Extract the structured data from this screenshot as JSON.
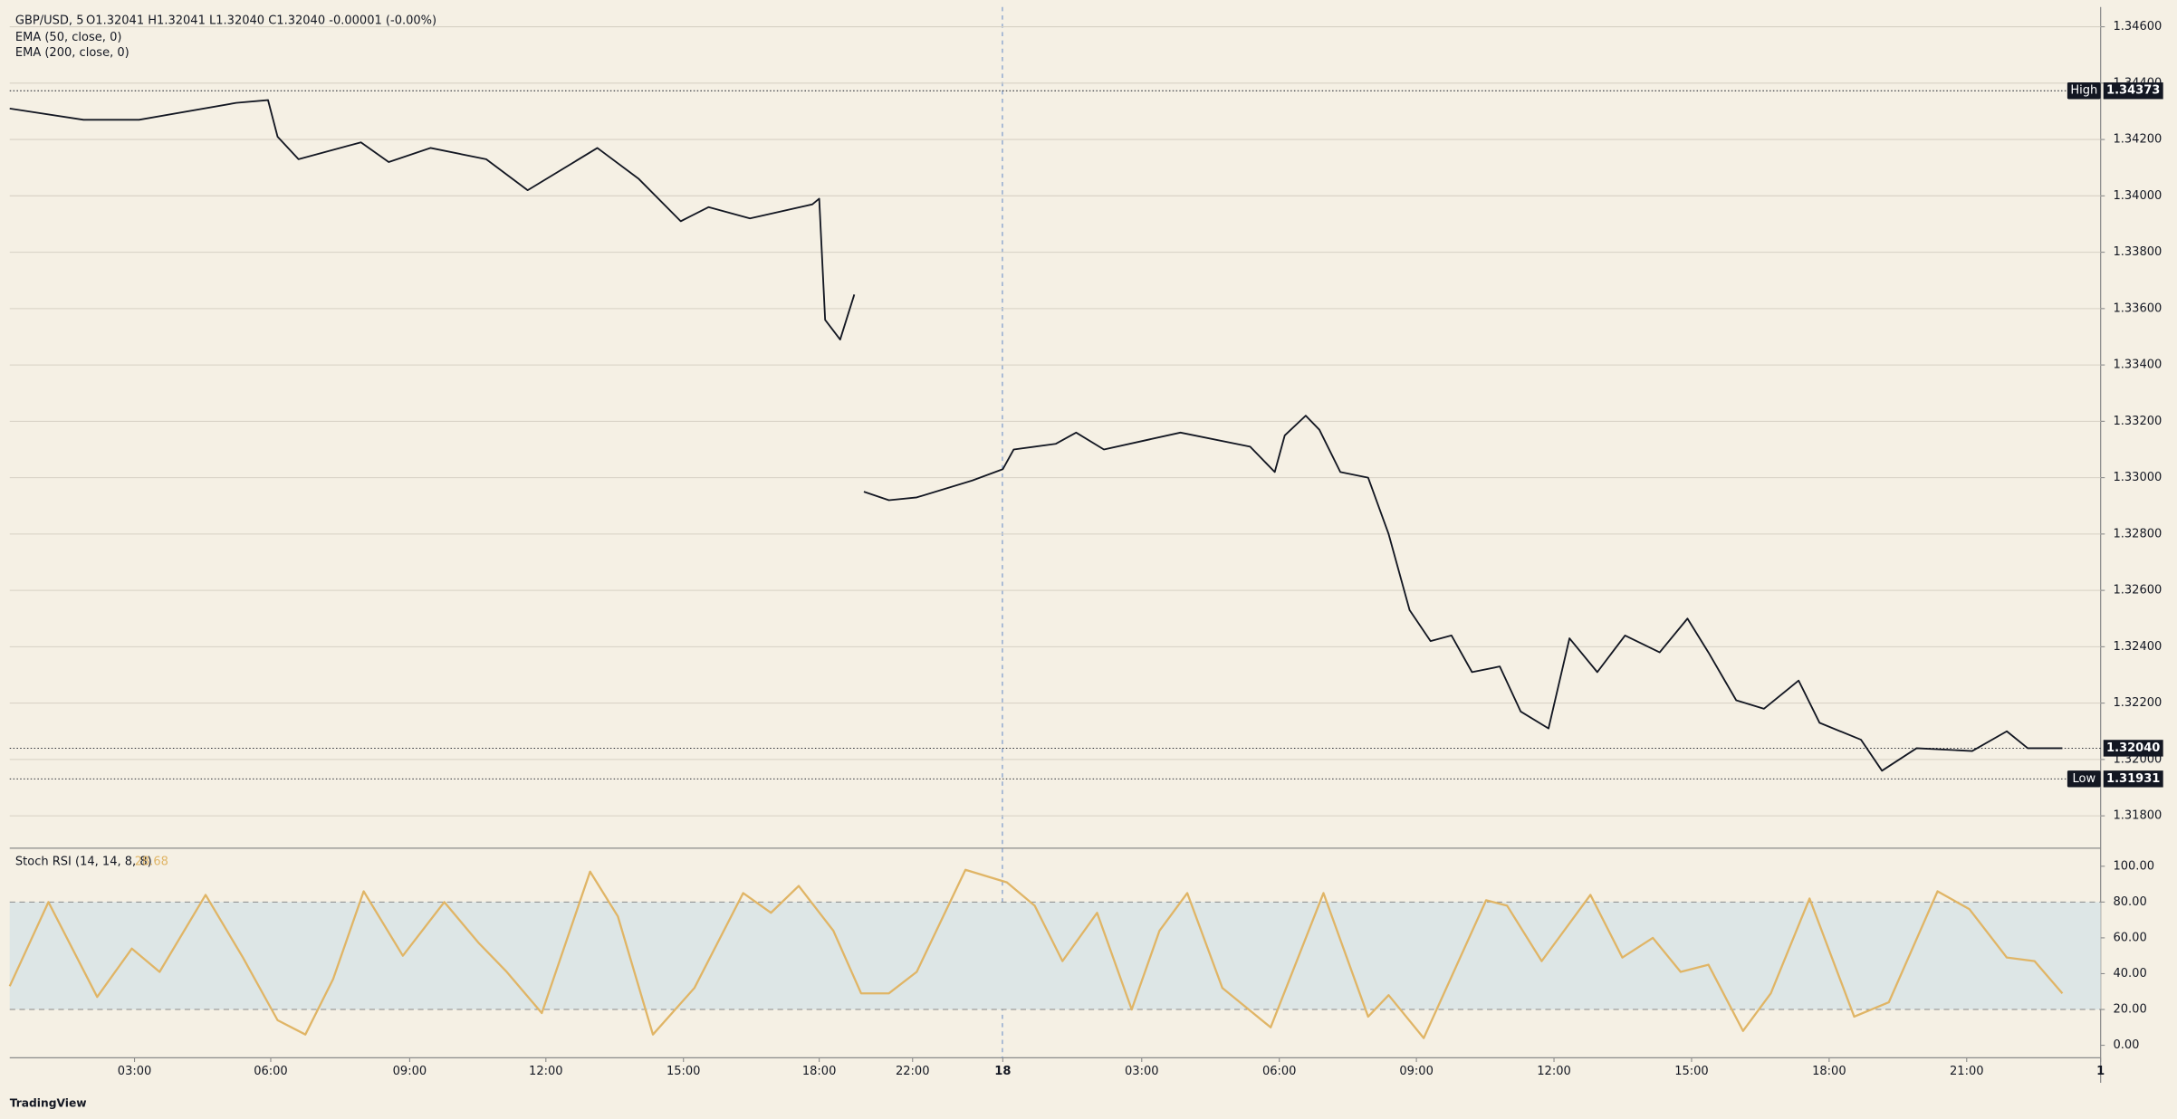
{
  "chart_data": [
    {
      "type": "line",
      "title": "GBP/USD, 5",
      "ohlc_label": "O1.32041  H1.32041  L1.32040  C1.32040  -0.00001 (-0.00%)",
      "indicators": [
        "EMA (50, close, 0)",
        "EMA (200, close, 0)"
      ],
      "color": "#131722",
      "x": [
        0,
        1.62,
        2.84,
        4.97,
        5.67,
        5.88,
        6.34,
        7.71,
        8.32,
        9.24,
        10.46,
        11.37,
        12.9,
        13.81,
        14.73,
        15.34,
        16.25,
        17.62,
        17.77,
        17.9,
        18.23,
        18.54,
        18.6,
        18.75,
        19.3,
        19.91,
        21.13,
        21.8,
        22.04,
        22.96,
        23.41,
        24.02,
        25.7,
        27.23,
        27.77,
        27.99,
        28.45,
        28.75,
        29.21,
        29.82,
        30.27,
        30.73,
        31.19,
        31.65,
        32.1,
        32.71,
        33.17,
        33.78,
        34.24,
        34.85,
        35.46,
        36.22,
        36.83,
        37.29,
        37.9,
        38.51,
        39.27,
        39.73,
        40.64,
        41.1,
        41.86,
        43.08,
        43.84,
        44.3,
        45.06
      ],
      "values": [
        1.3431,
        1.3427,
        1.3427,
        1.3433,
        1.3434,
        1.3421,
        1.3413,
        1.3419,
        1.3412,
        1.3417,
        1.3413,
        1.3402,
        1.3417,
        1.3406,
        1.3391,
        1.3396,
        1.3392,
        1.3397,
        1.3399,
        1.3356,
        1.3349,
        1.3365,
        null,
        1.3295,
        1.3292,
        1.3293,
        1.3299,
        1.3303,
        1.331,
        1.3312,
        1.3316,
        1.331,
        1.3316,
        1.3311,
        1.3302,
        1.3315,
        1.3322,
        1.3317,
        1.3302,
        1.33,
        1.328,
        1.3253,
        1.3242,
        1.3244,
        1.3231,
        1.3233,
        1.3217,
        1.3211,
        1.3243,
        1.3231,
        1.3244,
        1.3238,
        1.325,
        1.3238,
        1.3221,
        1.3218,
        1.3228,
        1.3213,
        1.3207,
        1.3196,
        1.3204,
        1.3203,
        1.321,
        1.3204,
        1.3204
      ],
      "xlim": [
        0,
        45.9
      ],
      "xticks": [
        {
          "value": 2.74,
          "label": "03:00"
        },
        {
          "value": 5.73,
          "label": "06:00"
        },
        {
          "value": 8.78,
          "label": "09:00"
        },
        {
          "value": 11.77,
          "label": "12:00"
        },
        {
          "value": 14.79,
          "label": "15:00"
        },
        {
          "value": 17.77,
          "label": "18:00"
        },
        {
          "value": 19.82,
          "label": "22:00"
        },
        {
          "value": 21.8,
          "label": "18"
        },
        {
          "value": 24.85,
          "label": "03:00"
        },
        {
          "value": 27.87,
          "label": "06:00"
        },
        {
          "value": 30.88,
          "label": "09:00"
        },
        {
          "value": 33.9,
          "label": "12:00"
        },
        {
          "value": 36.92,
          "label": "15:00"
        },
        {
          "value": 39.94,
          "label": "18:00"
        },
        {
          "value": 42.96,
          "label": "21:00"
        },
        {
          "value": 45.9,
          "label": "1"
        }
      ],
      "ylim": [
        1.3169,
        1.3467
      ],
      "yticks": [
        {
          "value": 1.318,
          "label": "1.31800"
        },
        {
          "value": 1.32,
          "label": "1.32000"
        },
        {
          "value": 1.322,
          "label": "1.32200"
        },
        {
          "value": 1.324,
          "label": "1.32400"
        },
        {
          "value": 1.326,
          "label": "1.32600"
        },
        {
          "value": 1.328,
          "label": "1.32800"
        },
        {
          "value": 1.33,
          "label": "1.33000"
        },
        {
          "value": 1.332,
          "label": "1.33200"
        },
        {
          "value": 1.334,
          "label": "1.33400"
        },
        {
          "value": 1.336,
          "label": "1.33600"
        },
        {
          "value": 1.338,
          "label": "1.33800"
        },
        {
          "value": 1.34,
          "label": "1.34000"
        },
        {
          "value": 1.342,
          "label": "1.34200"
        },
        {
          "value": 1.344,
          "label": "1.34400"
        },
        {
          "value": 1.346,
          "label": "1.34600"
        }
      ],
      "grid": true,
      "high": {
        "label": "High",
        "value": 1.34373
      },
      "low": {
        "label": "Low",
        "value": 1.31931
      },
      "last": {
        "value": 1.3204,
        "label": "1.32040"
      }
    },
    {
      "type": "line",
      "title": "Stoch RSI (14, 14, 8, 8)",
      "last_value": 28.68,
      "color": "#e0b566",
      "x": [
        0,
        0.85,
        1.92,
        2.68,
        3.29,
        4.3,
        5.12,
        5.88,
        6.49,
        7.1,
        7.77,
        8.63,
        9.54,
        10.3,
        10.91,
        11.68,
        12.74,
        13.35,
        14.12,
        15.03,
        16.1,
        16.71,
        17.32,
        18.08,
        18.69,
        19.3,
        19.91,
        20.98,
        21.89,
        22.5,
        23.11,
        23.87,
        24.63,
        25.24,
        25.85,
        26.62,
        27.68,
        28.84,
        29.82,
        30.27,
        31.04,
        32.41,
        32.87,
        33.63,
        34.7,
        35.4,
        36.07,
        36.68,
        37.29,
        38.05,
        38.66,
        39.51,
        40.49,
        41.25,
        42.32,
        43.02,
        43.84,
        44.45,
        45.06
      ],
      "values": [
        33,
        80,
        27,
        54,
        41,
        84,
        49,
        14,
        6,
        37,
        86,
        50,
        80,
        57,
        41,
        18,
        97,
        72,
        6,
        32,
        85,
        74,
        89,
        64,
        29,
        29,
        41,
        98,
        91,
        78,
        47,
        74,
        20,
        64,
        85,
        32,
        10,
        85,
        16,
        28,
        4,
        81,
        78,
        47,
        84,
        49,
        60,
        41,
        45,
        8,
        29,
        82,
        16,
        24,
        86,
        76,
        49,
        47,
        29
      ],
      "xlim": [
        0,
        45.9
      ],
      "ylim": [
        -7,
        109.3
      ],
      "yticks": [
        {
          "value": 0,
          "label": "0.00"
        },
        {
          "value": 20,
          "label": "20.00"
        },
        {
          "value": 40,
          "label": "40.00"
        },
        {
          "value": 60,
          "label": "60.00"
        },
        {
          "value": 80,
          "label": "80.00"
        },
        {
          "value": 100,
          "label": "100.00"
        }
      ],
      "band": [
        20,
        80
      ],
      "band_color": "#dde6e6"
    }
  ],
  "brand": "TradingView"
}
